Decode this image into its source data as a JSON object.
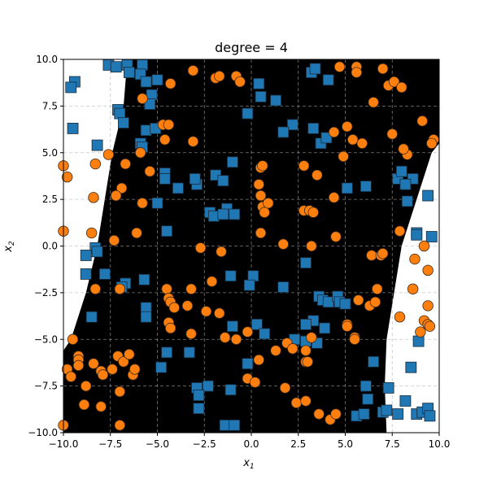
{
  "chart_data": {
    "type": "scatter",
    "title": "degree  = 4",
    "xlabel": "x1",
    "ylabel": "x2",
    "xlim": [
      -10,
      10
    ],
    "ylim": [
      -10,
      10
    ],
    "xticks": [
      "−10.0",
      "−7.5",
      "−5.0",
      "−2.5",
      "0.0",
      "2.5",
      "5.0",
      "7.5",
      "10.0"
    ],
    "yticks": [
      "−10.0",
      "−7.5",
      "−5.0",
      "−2.5",
      "0.0",
      "2.5",
      "5.0",
      "7.5",
      "10.0"
    ],
    "xtick_values": [
      -10,
      -7.5,
      -5,
      -2.5,
      0,
      2.5,
      5,
      7.5,
      10
    ],
    "ytick_values": [
      -10,
      -7.5,
      -5,
      -2.5,
      0,
      2.5,
      5,
      7.5,
      10
    ],
    "grid": true,
    "legend": null,
    "decision_region": {
      "fill_color": "#000000",
      "background_color": "#ffffff",
      "left_boundary": [
        [
          -6.6,
          10
        ],
        [
          -6.8,
          7.5
        ],
        [
          -7.4,
          5.0
        ],
        [
          -7.8,
          2.5
        ],
        [
          -8.2,
          0.0
        ],
        [
          -8.8,
          -2.5
        ],
        [
          -9.6,
          -5.0
        ],
        [
          -10.0,
          -5.6
        ]
      ],
      "right_boundary": [
        [
          10.0,
          5.5
        ],
        [
          9.6,
          5.0
        ],
        [
          8.8,
          2.5
        ],
        [
          8.0,
          0.0
        ],
        [
          7.6,
          -2.5
        ],
        [
          7.2,
          -5.0
        ],
        [
          7.1,
          -7.5
        ],
        [
          7.2,
          -10.0
        ]
      ]
    },
    "series": [
      {
        "name": "class 0",
        "marker": "square",
        "color": "#1f77b4",
        "points": [
          [
            -7.6,
            9.7
          ],
          [
            -7.2,
            9.6
          ],
          [
            -6.6,
            9.7
          ],
          [
            -6.5,
            9.3
          ],
          [
            -5.8,
            9.7
          ],
          [
            -5.9,
            9.2
          ],
          [
            -5.6,
            8.8
          ],
          [
            -5.0,
            8.9
          ],
          [
            -9.4,
            8.8
          ],
          [
            -9.6,
            8.5
          ],
          [
            -5.3,
            8.1
          ],
          [
            -5.4,
            7.6
          ],
          [
            -7.1,
            7.3
          ],
          [
            -7.0,
            7.1
          ],
          [
            -6.8,
            6.6
          ],
          [
            -9.5,
            6.3
          ],
          [
            -5.6,
            6.2
          ],
          [
            -5.1,
            6.3
          ],
          [
            -8.2,
            5.4
          ],
          [
            -5.9,
            5.5
          ],
          [
            -5.8,
            5.3
          ],
          [
            -4.6,
            3.9
          ],
          [
            -4.6,
            3.6
          ],
          [
            -3.9,
            3.1
          ],
          [
            -2.9,
            3.3
          ],
          [
            -3.0,
            3.6
          ],
          [
            -5.0,
            2.3
          ],
          [
            -1.9,
            3.8
          ],
          [
            -1.5,
            3.5
          ],
          [
            -1.0,
            4.5
          ],
          [
            0.4,
            8.7
          ],
          [
            0.5,
            8.0
          ],
          [
            -0.2,
            7.1
          ],
          [
            1.3,
            7.8
          ],
          [
            2.2,
            6.5
          ],
          [
            1.7,
            6.1
          ],
          [
            3.2,
            9.3
          ],
          [
            3.4,
            9.5
          ],
          [
            4.1,
            8.9
          ],
          [
            3.3,
            6.3
          ],
          [
            3.7,
            5.5
          ],
          [
            4.0,
            5.8
          ],
          [
            5.1,
            3.1
          ],
          [
            6.1,
            3.2
          ],
          [
            -2.2,
            1.8
          ],
          [
            -2.0,
            1.6
          ],
          [
            -1.3,
            2.0
          ],
          [
            -0.9,
            1.7
          ],
          [
            -1.5,
            1.7
          ],
          [
            -4.5,
            0.8
          ],
          [
            -8.3,
            -0.1
          ],
          [
            -8.8,
            -0.5
          ],
          [
            -8.2,
            -0.3
          ],
          [
            -8.8,
            -1.5
          ],
          [
            -7.8,
            -1.5
          ],
          [
            -6.7,
            -2.0
          ],
          [
            -6.9,
            -2.2
          ],
          [
            -5.7,
            -1.8
          ],
          [
            -5.6,
            -3.3
          ],
          [
            -5.6,
            -3.8
          ],
          [
            -8.5,
            -3.8
          ],
          [
            -1.1,
            -1.6
          ],
          [
            0.1,
            -1.6
          ],
          [
            -0.1,
            -2.1
          ],
          [
            1.7,
            -2.2
          ],
          [
            2.9,
            -0.9
          ],
          [
            3.6,
            -2.7
          ],
          [
            3.8,
            -2.9
          ],
          [
            4.1,
            -3.0
          ],
          [
            4.6,
            -2.7
          ],
          [
            4.7,
            -3.0
          ],
          [
            5.0,
            -3.1
          ],
          [
            3.3,
            -4.0
          ],
          [
            3.9,
            -4.4
          ],
          [
            2.9,
            -4.2
          ],
          [
            -3.3,
            -5.7
          ],
          [
            -4.5,
            -5.7
          ],
          [
            -4.8,
            -6.5
          ],
          [
            -1.0,
            -4.3
          ],
          [
            0.3,
            -4.2
          ],
          [
            0.7,
            -4.7
          ],
          [
            -0.2,
            -6.3
          ],
          [
            -1.1,
            -7.7
          ],
          [
            -2.3,
            -7.5
          ],
          [
            -2.9,
            -7.6
          ],
          [
            -2.8,
            -8.0
          ],
          [
            -2.8,
            -8.7
          ],
          [
            -1.4,
            -9.6
          ],
          [
            -0.9,
            -9.6
          ],
          [
            2.3,
            -5.0
          ],
          [
            2.9,
            -5.1
          ],
          [
            3.5,
            -5.2
          ],
          [
            5.6,
            -9.1
          ],
          [
            6.0,
            -9.0
          ],
          [
            6.2,
            -8.2
          ],
          [
            6.5,
            -6.2
          ],
          [
            6.1,
            -7.5
          ],
          [
            7.0,
            -8.9
          ],
          [
            7.2,
            -8.8
          ],
          [
            7.3,
            -7.6
          ],
          [
            8.2,
            -8.3
          ],
          [
            7.8,
            -9.0
          ],
          [
            8.8,
            -9.0
          ],
          [
            9.1,
            -8.9
          ],
          [
            9.4,
            -8.7
          ],
          [
            9.5,
            -9.1
          ],
          [
            8.5,
            -6.5
          ],
          [
            8.9,
            -5.1
          ],
          [
            7.8,
            3.6
          ],
          [
            8.0,
            4.0
          ],
          [
            8.3,
            2.4
          ],
          [
            8.6,
            3.6
          ],
          [
            9.4,
            2.7
          ],
          [
            8.8,
            0.7
          ],
          [
            8.8,
            0.6
          ],
          [
            9.6,
            0.5
          ],
          [
            8.2,
            3.3
          ]
        ]
      },
      {
        "name": "class 1",
        "marker": "circle",
        "color": "#ff7f0e",
        "points": [
          [
            -4.3,
            8.7
          ],
          [
            -3.1,
            9.4
          ],
          [
            -1.9,
            9.0
          ],
          [
            -1.7,
            9.1
          ],
          [
            -0.8,
            9.1
          ],
          [
            -0.6,
            8.8
          ],
          [
            -5.8,
            7.9
          ],
          [
            -4.7,
            6.5
          ],
          [
            -4.4,
            6.5
          ],
          [
            -4.6,
            5.7
          ],
          [
            -3.1,
            5.6
          ],
          [
            -5.9,
            5.0
          ],
          [
            -7.6,
            4.9
          ],
          [
            -6.7,
            4.4
          ],
          [
            -8.3,
            4.4
          ],
          [
            -10.0,
            4.3
          ],
          [
            -9.8,
            3.7
          ],
          [
            -5.4,
            4.0
          ],
          [
            -6.9,
            3.1
          ],
          [
            -7.2,
            2.7
          ],
          [
            -8.4,
            2.6
          ],
          [
            -5.8,
            2.3
          ],
          [
            -10.0,
            0.8
          ],
          [
            -6.1,
            0.7
          ],
          [
            -8.5,
            0.7
          ],
          [
            -7.3,
            0.3
          ],
          [
            -2.7,
            -0.1
          ],
          [
            -1.6,
            -0.3
          ],
          [
            4.7,
            9.6
          ],
          [
            5.6,
            9.6
          ],
          [
            5.6,
            9.3
          ],
          [
            7.0,
            9.5
          ],
          [
            7.3,
            8.6
          ],
          [
            7.6,
            8.8
          ],
          [
            6.5,
            7.7
          ],
          [
            8.0,
            8.5
          ],
          [
            5.1,
            6.4
          ],
          [
            5.4,
            5.7
          ],
          [
            4.4,
            6.1
          ],
          [
            5.9,
            5.5
          ],
          [
            7.5,
            6.0
          ],
          [
            8.3,
            4.9
          ],
          [
            8.1,
            5.2
          ],
          [
            9.7,
            5.7
          ],
          [
            9.6,
            5.5
          ],
          [
            9.1,
            6.7
          ],
          [
            0.5,
            4.2
          ],
          [
            0.6,
            4.3
          ],
          [
            0.4,
            3.3
          ],
          [
            0.5,
            2.7
          ],
          [
            0.6,
            2.1
          ],
          [
            0.9,
            2.3
          ],
          [
            0.7,
            1.8
          ],
          [
            0.5,
            0.7
          ],
          [
            2.8,
            4.3
          ],
          [
            2.8,
            1.9
          ],
          [
            3.1,
            1.9
          ],
          [
            3.3,
            1.8
          ],
          [
            3.5,
            3.8
          ],
          [
            4.4,
            2.6
          ],
          [
            4.9,
            4.8
          ],
          [
            4.5,
            0.5
          ],
          [
            3.2,
            0.0
          ],
          [
            1.7,
            0.1
          ],
          [
            6.4,
            -0.5
          ],
          [
            6.9,
            -0.5
          ],
          [
            7.0,
            -0.4
          ],
          [
            7.9,
            0.8
          ],
          [
            9.2,
            0.0
          ],
          [
            -8.3,
            -2.3
          ],
          [
            -7.0,
            -2.3
          ],
          [
            -4.5,
            -2.3
          ],
          [
            -3.2,
            -2.3
          ],
          [
            -2.1,
            -1.9
          ],
          [
            -3.4,
            -3.2
          ],
          [
            -4.4,
            -2.8
          ],
          [
            -4.3,
            -3.0
          ],
          [
            -4.1,
            -3.3
          ],
          [
            -4.4,
            -4.1
          ],
          [
            -4.3,
            -4.4
          ],
          [
            -2.4,
            -3.5
          ],
          [
            -3.2,
            -4.7
          ],
          [
            -1.7,
            -3.6
          ],
          [
            -1.4,
            -4.9
          ],
          [
            -0.8,
            -5.0
          ],
          [
            -0.2,
            -4.6
          ],
          [
            0.4,
            -6.1
          ],
          [
            1.3,
            -5.6
          ],
          [
            1.9,
            -5.2
          ],
          [
            2.2,
            -5.5
          ],
          [
            2.9,
            -5.6
          ],
          [
            2.9,
            -6.2
          ],
          [
            3.0,
            -6.2
          ],
          [
            3.2,
            -4.9
          ],
          [
            5.1,
            -4.2
          ],
          [
            5.1,
            -4.3
          ],
          [
            5.7,
            -2.9
          ],
          [
            6.7,
            -2.3
          ],
          [
            6.3,
            -3.2
          ],
          [
            6.6,
            -3.0
          ],
          [
            7.9,
            -3.8
          ],
          [
            5.5,
            -4.9
          ],
          [
            5.5,
            -5.0
          ],
          [
            8.7,
            -0.7
          ],
          [
            9.4,
            -1.3
          ],
          [
            8.6,
            -2.3
          ],
          [
            9.4,
            -3.2
          ],
          [
            9.2,
            -4.0
          ],
          [
            9.4,
            -4.2
          ],
          [
            9.5,
            -4.3
          ],
          [
            9.0,
            -4.6
          ],
          [
            -9.2,
            -5.9
          ],
          [
            -9.8,
            -6.6
          ],
          [
            -9.6,
            -7.0
          ],
          [
            -9.2,
            -6.1
          ],
          [
            -9.2,
            -6.4
          ],
          [
            -8.8,
            -7.5
          ],
          [
            -8.4,
            -6.3
          ],
          [
            -8.0,
            -6.7
          ],
          [
            -7.9,
            -6.9
          ],
          [
            -7.4,
            -6.6
          ],
          [
            -7.1,
            -5.9
          ],
          [
            -6.8,
            -6.2
          ],
          [
            -6.5,
            -5.8
          ],
          [
            -8.0,
            -8.6
          ],
          [
            -9.5,
            -5.0
          ],
          [
            -8.9,
            -8.5
          ],
          [
            -6.3,
            -6.9
          ],
          [
            -6.2,
            -6.6
          ],
          [
            -7.0,
            -7.8
          ],
          [
            -7.0,
            -9.6
          ],
          [
            -10.0,
            -9.6
          ],
          [
            -0.2,
            -7.1
          ],
          [
            0.2,
            -7.3
          ],
          [
            1.8,
            -7.6
          ],
          [
            2.4,
            -8.4
          ],
          [
            2.9,
            -8.3
          ],
          [
            4.2,
            -9.3
          ],
          [
            4.5,
            -9.0
          ],
          [
            3.6,
            -9.0
          ]
        ]
      }
    ]
  }
}
